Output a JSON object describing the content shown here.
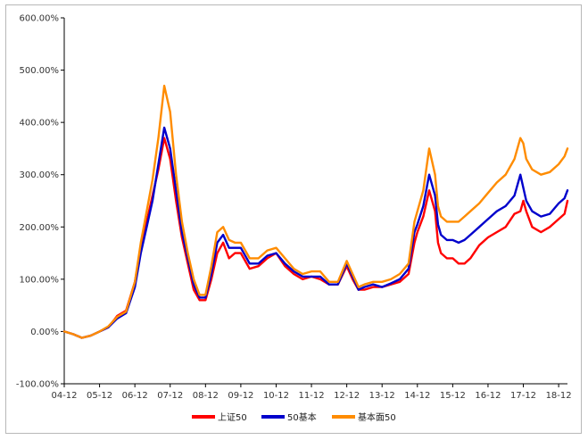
{
  "chart_data": {
    "type": "line",
    "title": "",
    "xlabel": "",
    "ylabel": "",
    "ylim": [
      -100,
      600
    ],
    "y_ticks": [
      "-100.00%",
      "0.00%",
      "100.00%",
      "200.00%",
      "300.00%",
      "400.00%",
      "500.00%",
      "600.00%"
    ],
    "x_ticks": [
      "04-12",
      "05-12",
      "06-12",
      "07-12",
      "08-12",
      "09-12",
      "10-12",
      "11-12",
      "12-12",
      "13-12",
      "14-12",
      "15-12",
      "16-12",
      "17-12",
      "18-12"
    ],
    "x": [
      "04-12",
      "05-03",
      "05-06",
      "05-09",
      "05-12",
      "06-03",
      "06-06",
      "06-09",
      "06-12",
      "07-02",
      "07-04",
      "07-06",
      "07-08",
      "07-10",
      "07-12",
      "08-02",
      "08-04",
      "08-06",
      "08-08",
      "08-10",
      "08-12",
      "09-02",
      "09-04",
      "09-06",
      "09-08",
      "09-10",
      "09-12",
      "10-03",
      "10-06",
      "10-09",
      "10-12",
      "11-03",
      "11-06",
      "11-09",
      "11-12",
      "12-03",
      "12-06",
      "12-09",
      "12-12",
      "13-02",
      "13-04",
      "13-06",
      "13-09",
      "13-12",
      "14-03",
      "14-06",
      "14-09",
      "14-11",
      "14-12",
      "15-02",
      "15-04",
      "15-06",
      "15-07",
      "15-08",
      "15-10",
      "15-12",
      "16-02",
      "16-04",
      "16-06",
      "16-09",
      "16-12",
      "17-03",
      "17-06",
      "17-09",
      "17-11",
      "17-12",
      "18-01",
      "18-03",
      "18-06",
      "18-09",
      "18-12",
      "19-02",
      "19-03"
    ],
    "series": [
      {
        "name": "上证50",
        "color": "#ff0000",
        "values": [
          0,
          -5,
          -12,
          -8,
          0,
          8,
          30,
          40,
          95,
          160,
          210,
          260,
          310,
          370,
          330,
          250,
          180,
          130,
          80,
          60,
          60,
          100,
          150,
          170,
          140,
          150,
          150,
          120,
          125,
          140,
          150,
          125,
          110,
          100,
          105,
          100,
          90,
          90,
          125,
          100,
          80,
          80,
          85,
          85,
          90,
          95,
          110,
          170,
          190,
          220,
          270,
          230,
          170,
          150,
          140,
          140,
          130,
          130,
          140,
          165,
          180,
          190,
          200,
          225,
          230,
          250,
          230,
          200,
          190,
          200,
          215,
          225,
          250
        ]
      },
      {
        "name": "50基本",
        "color": "#0000cc",
        "values": [
          0,
          -5,
          -12,
          -8,
          0,
          8,
          25,
          35,
          85,
          150,
          200,
          250,
          320,
          390,
          350,
          270,
          190,
          140,
          90,
          65,
          65,
          110,
          170,
          185,
          160,
          160,
          160,
          130,
          130,
          145,
          150,
          130,
          115,
          105,
          105,
          105,
          90,
          90,
          130,
          105,
          80,
          85,
          90,
          85,
          92,
          100,
          120,
          190,
          205,
          240,
          300,
          260,
          205,
          185,
          175,
          175,
          170,
          175,
          185,
          200,
          215,
          230,
          240,
          260,
          300,
          275,
          250,
          230,
          220,
          225,
          245,
          255,
          270
        ]
      },
      {
        "name": "基本面50",
        "color": "#ff8c00",
        "values": [
          0,
          -5,
          -12,
          -8,
          0,
          10,
          28,
          38,
          95,
          170,
          230,
          290,
          370,
          470,
          420,
          300,
          210,
          150,
          100,
          70,
          70,
          125,
          190,
          200,
          175,
          170,
          170,
          140,
          140,
          155,
          160,
          140,
          120,
          110,
          115,
          115,
          95,
          95,
          135,
          110,
          85,
          90,
          95,
          95,
          100,
          110,
          130,
          210,
          230,
          270,
          350,
          300,
          240,
          220,
          210,
          210,
          210,
          220,
          230,
          245,
          265,
          285,
          300,
          330,
          370,
          360,
          330,
          310,
          300,
          305,
          320,
          335,
          350
        ]
      }
    ],
    "legend_position": "bottom",
    "grid": false
  }
}
